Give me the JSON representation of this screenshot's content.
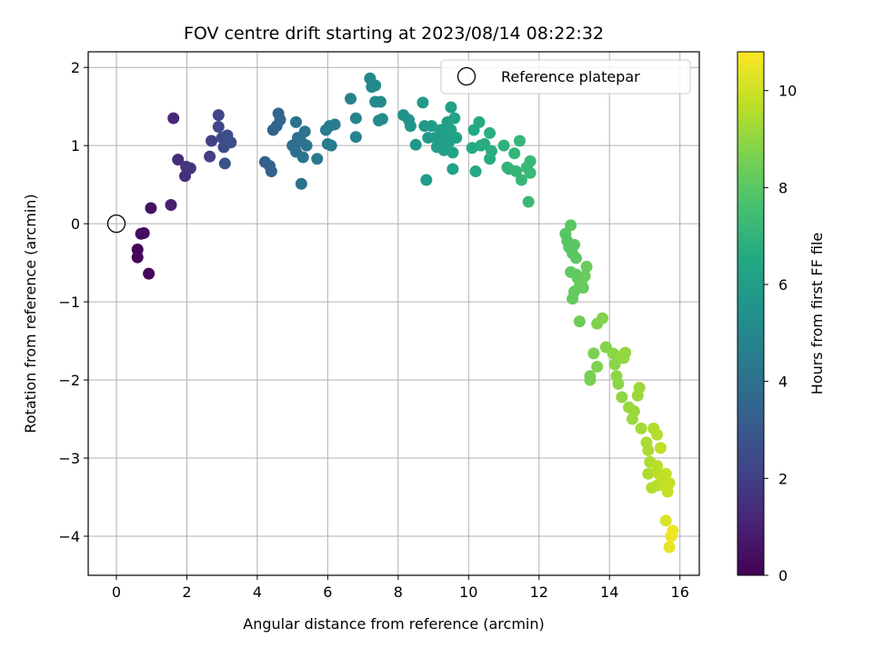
{
  "chart_data": {
    "type": "scatter",
    "title": "FOV centre drift starting at 2023/08/14 08:22:32",
    "xlabel": "Angular distance from reference (arcmin)",
    "ylabel": "Rotation from reference (arcmin)",
    "xlim": [
      -0.8,
      16.55
    ],
    "ylim": [
      -4.5,
      2.2
    ],
    "xticks": [
      0,
      2,
      4,
      6,
      8,
      10,
      12,
      14,
      16
    ],
    "yticks": [
      -4,
      -3,
      -2,
      -1,
      0,
      1,
      2
    ],
    "grid": true,
    "legend": {
      "position": "top-right",
      "entries": [
        "Reference platepar"
      ]
    },
    "reference_point": {
      "x": 0,
      "y": 0
    },
    "colorbar": {
      "label": "Hours from first FF file",
      "range": [
        0,
        10.8
      ],
      "ticks": [
        0,
        2,
        4,
        6,
        8,
        10
      ],
      "colormap": "viridis"
    },
    "series": [
      {
        "color_by": "hours",
        "points": [
          [
            0.6,
            -0.33,
            0.1
          ],
          [
            0.6,
            -0.43,
            0.15
          ],
          [
            0.92,
            -0.64,
            0.2
          ],
          [
            0.78,
            -0.12,
            0.3
          ],
          [
            0.7,
            -0.13,
            0.35
          ],
          [
            0.98,
            0.2,
            0.5
          ],
          [
            1.55,
            0.24,
            1.0
          ],
          [
            1.62,
            1.35,
            1.2
          ],
          [
            1.75,
            0.82,
            1.4
          ],
          [
            1.95,
            0.61,
            1.5
          ],
          [
            1.98,
            0.73,
            1.6
          ],
          [
            2.1,
            0.71,
            1.7
          ],
          [
            2.65,
            0.86,
            2.0
          ],
          [
            2.7,
            1.06,
            2.1
          ],
          [
            2.9,
            1.39,
            2.2
          ],
          [
            2.9,
            1.24,
            2.3
          ],
          [
            3.0,
            1.1,
            2.4
          ],
          [
            3.05,
            0.98,
            2.5
          ],
          [
            3.1,
            1.02,
            2.5
          ],
          [
            3.2,
            1.05,
            2.6
          ],
          [
            3.25,
            1.04,
            2.6
          ],
          [
            3.08,
            0.77,
            2.7
          ],
          [
            3.15,
            1.13,
            2.6
          ],
          [
            4.22,
            0.79,
            3.3
          ],
          [
            4.35,
            0.74,
            3.35
          ],
          [
            4.4,
            0.67,
            3.4
          ],
          [
            4.45,
            1.2,
            3.45
          ],
          [
            4.55,
            1.25,
            3.5
          ],
          [
            4.6,
            1.41,
            3.5
          ],
          [
            4.65,
            1.33,
            3.55
          ],
          [
            5.0,
            1.0,
            3.9
          ],
          [
            5.05,
            0.98,
            3.9
          ],
          [
            5.1,
            0.92,
            3.95
          ],
          [
            5.15,
            1.1,
            4.0
          ],
          [
            5.1,
            1.3,
            4.0
          ],
          [
            5.25,
            1.05,
            4.05
          ],
          [
            5.3,
            0.85,
            4.1
          ],
          [
            5.35,
            1.18,
            4.1
          ],
          [
            5.25,
            0.51,
            4.05
          ],
          [
            5.4,
            1.0,
            4.15
          ],
          [
            5.7,
            0.83,
            4.3
          ],
          [
            5.95,
            1.2,
            4.4
          ],
          [
            6.05,
            1.25,
            4.4
          ],
          [
            6.0,
            1.02,
            4.45
          ],
          [
            6.1,
            1.0,
            4.5
          ],
          [
            6.2,
            1.27,
            4.5
          ],
          [
            6.65,
            1.6,
            4.7
          ],
          [
            6.8,
            1.35,
            4.8
          ],
          [
            6.8,
            1.11,
            4.8
          ],
          [
            7.2,
            1.86,
            5.0
          ],
          [
            7.25,
            1.75,
            5.0
          ],
          [
            7.35,
            1.77,
            5.05
          ],
          [
            7.35,
            1.56,
            5.1
          ],
          [
            7.45,
            1.32,
            5.1
          ],
          [
            7.5,
            1.56,
            5.15
          ],
          [
            7.55,
            1.34,
            5.2
          ],
          [
            8.15,
            1.39,
            5.5
          ],
          [
            8.3,
            1.33,
            5.55
          ],
          [
            8.35,
            1.25,
            5.6
          ],
          [
            8.5,
            1.01,
            5.7
          ],
          [
            8.7,
            1.55,
            5.8
          ],
          [
            8.75,
            1.25,
            5.8
          ],
          [
            8.85,
            1.1,
            5.85
          ],
          [
            8.8,
            0.56,
            5.9
          ],
          [
            8.95,
            1.25,
            5.9
          ],
          [
            9.05,
            1.1,
            5.95
          ],
          [
            9.1,
            0.98,
            6.0
          ],
          [
            9.15,
            1.0,
            6.0
          ],
          [
            9.2,
            1.2,
            6.0
          ],
          [
            9.3,
            1.05,
            6.05
          ],
          [
            9.3,
            0.94,
            6.05
          ],
          [
            9.35,
            1.12,
            6.1
          ],
          [
            9.4,
            1.3,
            6.1
          ],
          [
            9.45,
            1.05,
            6.1
          ],
          [
            9.5,
            1.49,
            6.15
          ],
          [
            9.5,
            1.2,
            6.15
          ],
          [
            9.55,
            0.91,
            6.2
          ],
          [
            9.55,
            0.7,
            6.2
          ],
          [
            9.6,
            1.35,
            6.2
          ],
          [
            9.65,
            1.1,
            6.25
          ],
          [
            10.1,
            0.97,
            6.5
          ],
          [
            10.15,
            1.2,
            6.5
          ],
          [
            10.2,
            0.67,
            6.55
          ],
          [
            10.3,
            1.3,
            6.55
          ],
          [
            10.35,
            1.0,
            6.6
          ],
          [
            10.45,
            1.02,
            6.65
          ],
          [
            10.6,
            0.83,
            6.7
          ],
          [
            10.6,
            1.16,
            6.75
          ],
          [
            10.65,
            0.93,
            6.75
          ],
          [
            11.0,
            1.0,
            6.9
          ],
          [
            11.1,
            0.72,
            7.0
          ],
          [
            11.15,
            0.7,
            7.0
          ],
          [
            11.3,
            0.9,
            7.05
          ],
          [
            11.35,
            0.67,
            7.1
          ],
          [
            11.45,
            1.06,
            7.1
          ],
          [
            11.5,
            0.56,
            7.15
          ],
          [
            11.65,
            0.72,
            7.2
          ],
          [
            11.75,
            0.8,
            7.2
          ],
          [
            11.75,
            0.65,
            7.25
          ],
          [
            11.7,
            0.28,
            7.25
          ],
          [
            12.75,
            -0.13,
            7.9
          ],
          [
            12.8,
            -0.22,
            7.9
          ],
          [
            12.85,
            -0.3,
            7.95
          ],
          [
            12.9,
            -0.02,
            8.0
          ],
          [
            12.95,
            -0.38,
            8.0
          ],
          [
            13.0,
            -0.27,
            8.05
          ],
          [
            13.05,
            -0.44,
            8.05
          ],
          [
            12.9,
            -0.62,
            8.1
          ],
          [
            13.05,
            -0.65,
            8.1
          ],
          [
            13.1,
            -0.7,
            8.15
          ],
          [
            13.0,
            -0.87,
            8.15
          ],
          [
            12.95,
            -0.96,
            8.2
          ],
          [
            13.15,
            -0.8,
            8.2
          ],
          [
            13.2,
            -0.75,
            8.25
          ],
          [
            13.25,
            -0.82,
            8.25
          ],
          [
            13.35,
            -0.55,
            8.3
          ],
          [
            13.3,
            -0.67,
            8.3
          ],
          [
            13.15,
            -1.25,
            8.35
          ],
          [
            13.45,
            -1.95,
            8.6
          ],
          [
            13.45,
            -2.0,
            8.6
          ],
          [
            13.55,
            -1.66,
            8.65
          ],
          [
            13.65,
            -1.83,
            8.7
          ],
          [
            13.65,
            -1.28,
            8.7
          ],
          [
            13.8,
            -1.21,
            8.75
          ],
          [
            13.9,
            -1.58,
            8.8
          ],
          [
            14.1,
            -1.66,
            8.9
          ],
          [
            14.15,
            -1.8,
            8.9
          ],
          [
            14.2,
            -1.95,
            8.95
          ],
          [
            14.25,
            -2.05,
            8.95
          ],
          [
            14.3,
            -1.7,
            9.0
          ],
          [
            14.35,
            -2.22,
            9.0
          ],
          [
            14.4,
            -1.72,
            9.05
          ],
          [
            14.45,
            -1.65,
            9.05
          ],
          [
            14.55,
            -2.35,
            9.1
          ],
          [
            14.65,
            -2.5,
            9.15
          ],
          [
            14.7,
            -2.4,
            9.15
          ],
          [
            14.8,
            -2.2,
            9.2
          ],
          [
            14.85,
            -2.1,
            9.2
          ],
          [
            14.9,
            -2.62,
            9.3
          ],
          [
            15.05,
            -2.8,
            9.4
          ],
          [
            15.1,
            -2.9,
            9.45
          ],
          [
            15.1,
            -3.2,
            9.5
          ],
          [
            15.15,
            -3.05,
            9.5
          ],
          [
            15.2,
            -3.38,
            9.55
          ],
          [
            15.25,
            -2.62,
            9.55
          ],
          [
            15.35,
            -3.35,
            9.6
          ],
          [
            15.35,
            -2.7,
            9.6
          ],
          [
            15.35,
            -3.1,
            9.65
          ],
          [
            15.4,
            -3.2,
            9.65
          ],
          [
            15.45,
            -2.87,
            9.7
          ],
          [
            15.5,
            -3.25,
            9.75
          ],
          [
            15.55,
            -3.35,
            9.75
          ],
          [
            15.6,
            -3.2,
            9.8
          ],
          [
            15.65,
            -3.43,
            9.85
          ],
          [
            15.7,
            -3.32,
            9.85
          ],
          [
            15.6,
            -3.8,
            10.2
          ],
          [
            15.7,
            -4.14,
            10.4
          ],
          [
            15.75,
            -4.0,
            10.5
          ],
          [
            15.8,
            -3.93,
            10.6
          ]
        ]
      }
    ]
  }
}
